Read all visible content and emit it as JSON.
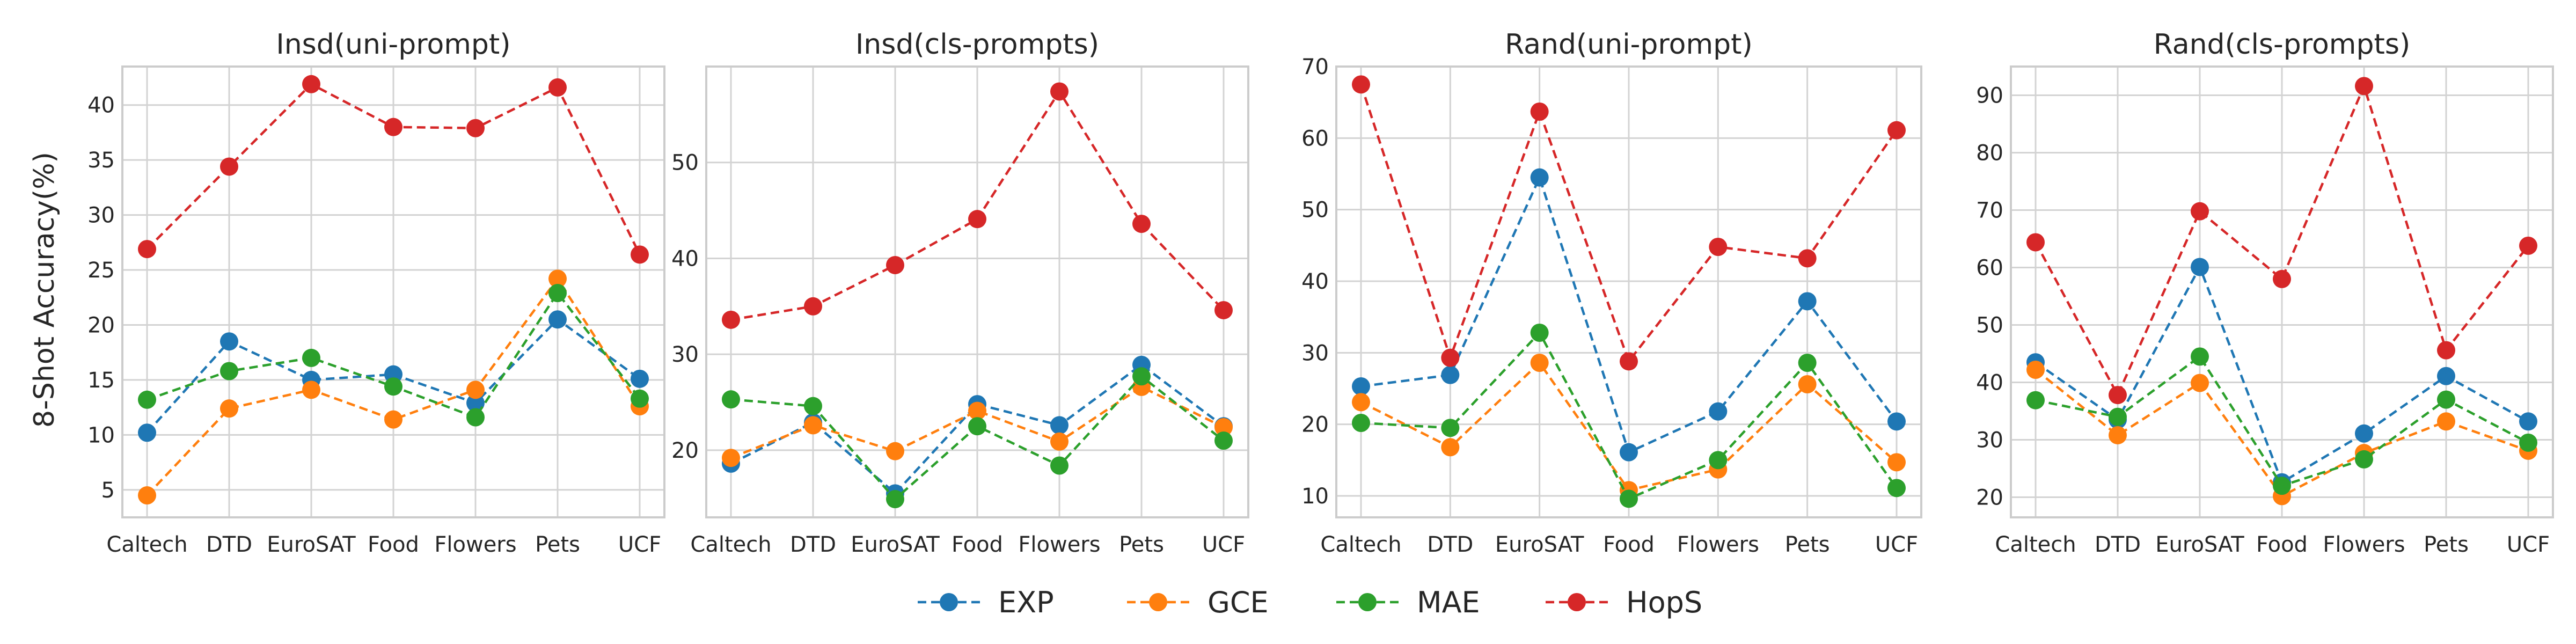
{
  "figure": {
    "ylabel": "8-Shot Accuracy(%)"
  },
  "series_styles": [
    {
      "name": "EXP",
      "color": "#1f77b4"
    },
    {
      "name": "GCE",
      "color": "#ff7f0e"
    },
    {
      "name": "MAE",
      "color": "#2ca02c"
    },
    {
      "name": "HopS",
      "color": "#d62728"
    }
  ],
  "chart_data": [
    {
      "type": "line",
      "title": "Insd(uni-prompt)",
      "categories": [
        "Caltech",
        "DTD",
        "EuroSAT",
        "Food",
        "Flowers",
        "Pets",
        "UCF"
      ],
      "ylim": [
        2.5,
        43.5
      ],
      "yticks": [
        5,
        10,
        15,
        20,
        25,
        30,
        35,
        40
      ],
      "series": [
        {
          "name": "EXP",
          "values": [
            10.2,
            18.5,
            15.0,
            15.5,
            12.9,
            20.5,
            15.1
          ]
        },
        {
          "name": "GCE",
          "values": [
            4.5,
            12.4,
            14.1,
            11.4,
            14.1,
            24.2,
            12.6
          ]
        },
        {
          "name": "MAE",
          "values": [
            13.2,
            15.8,
            17.0,
            14.4,
            11.6,
            22.9,
            13.3
          ]
        },
        {
          "name": "HopS",
          "values": [
            26.9,
            34.4,
            41.9,
            38.0,
            37.9,
            41.6,
            26.4
          ]
        }
      ]
    },
    {
      "type": "line",
      "title": "Insd(cls-prompts)",
      "categories": [
        "Caltech",
        "DTD",
        "EuroSAT",
        "Food",
        "Flowers",
        "Pets",
        "UCF"
      ],
      "ylim": [
        13,
        60
      ],
      "yticks": [
        20,
        30,
        40,
        50
      ],
      "series": [
        {
          "name": "EXP",
          "values": [
            18.6,
            22.9,
            15.5,
            24.8,
            22.6,
            28.9,
            22.5
          ]
        },
        {
          "name": "GCE",
          "values": [
            19.2,
            22.6,
            19.9,
            24.1,
            20.9,
            26.6,
            22.4
          ]
        },
        {
          "name": "MAE",
          "values": [
            25.3,
            24.6,
            14.9,
            22.5,
            18.4,
            27.7,
            21.0
          ]
        },
        {
          "name": "HopS",
          "values": [
            33.6,
            35.0,
            39.3,
            44.1,
            57.4,
            43.6,
            34.6
          ]
        }
      ]
    },
    {
      "type": "line",
      "title": "Rand(uni-prompt)",
      "categories": [
        "Caltech",
        "DTD",
        "EuroSAT",
        "Food",
        "Flowers",
        "Pets",
        "UCF"
      ],
      "ylim": [
        7,
        70
      ],
      "yticks": [
        10,
        20,
        30,
        40,
        50,
        60,
        70
      ],
      "series": [
        {
          "name": "EXP",
          "values": [
            25.3,
            26.9,
            54.5,
            16.1,
            21.8,
            37.2,
            20.4
          ]
        },
        {
          "name": "GCE",
          "values": [
            23.1,
            16.8,
            28.6,
            10.8,
            13.7,
            25.6,
            14.7
          ]
        },
        {
          "name": "MAE",
          "values": [
            20.2,
            19.5,
            32.8,
            9.6,
            15.0,
            28.6,
            11.1
          ]
        },
        {
          "name": "HopS",
          "values": [
            67.5,
            29.3,
            63.7,
            28.8,
            44.8,
            43.2,
            61.1
          ]
        }
      ]
    },
    {
      "type": "line",
      "title": "Rand(cls-prompts)",
      "categories": [
        "Caltech",
        "DTD",
        "EuroSAT",
        "Food",
        "Flowers",
        "Pets",
        "UCF"
      ],
      "ylim": [
        16.5,
        95
      ],
      "yticks": [
        20,
        30,
        40,
        50,
        60,
        70,
        80,
        90
      ],
      "series": [
        {
          "name": "EXP",
          "values": [
            43.5,
            33.5,
            60.1,
            22.6,
            31.1,
            41.1,
            33.2
          ]
        },
        {
          "name": "GCE",
          "values": [
            42.2,
            30.8,
            39.9,
            20.2,
            27.7,
            33.2,
            28.1
          ]
        },
        {
          "name": "MAE",
          "values": [
            36.9,
            34.0,
            44.5,
            22.0,
            26.6,
            37.0,
            29.5
          ]
        },
        {
          "name": "HopS",
          "values": [
            64.4,
            37.8,
            69.8,
            58.0,
            91.6,
            45.6,
            63.8
          ]
        }
      ]
    }
  ],
  "legend": {
    "position": "bottom-center",
    "items": [
      "EXP",
      "GCE",
      "MAE",
      "HopS"
    ]
  }
}
